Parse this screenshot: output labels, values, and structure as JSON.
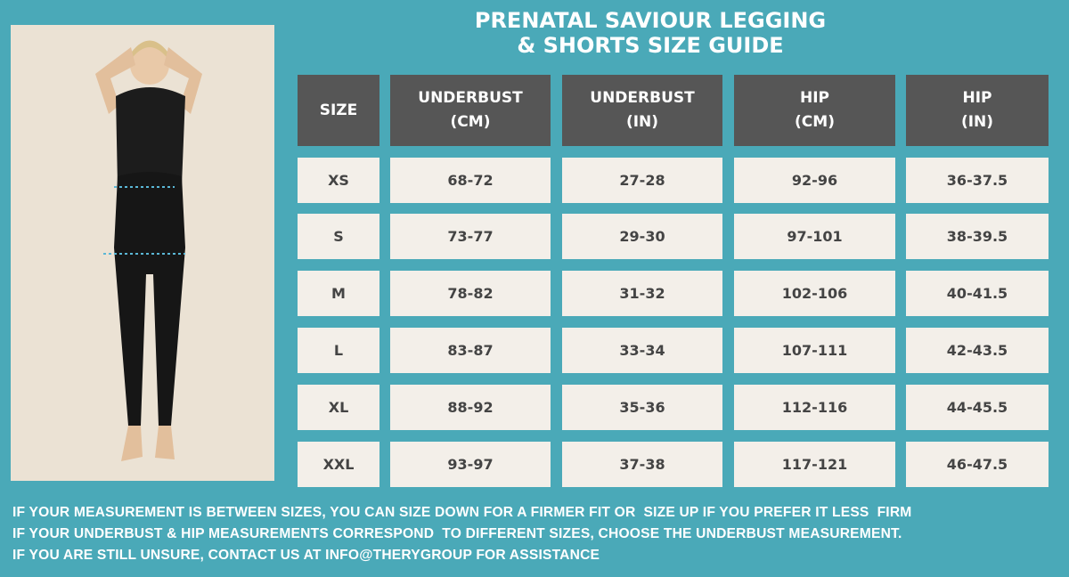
{
  "header": {
    "title": [
      "PRENATAL SAVIOUR LEGGING",
      "& SHORTS SIZE GUIDE"
    ]
  },
  "table": {
    "headers": [
      [
        "SIZE"
      ],
      [
        "UNDERBUST",
        "(CM)"
      ],
      [
        "UNDERBUST",
        "(IN)"
      ],
      [
        "HIP",
        "(CM)"
      ],
      [
        "HIP",
        "(IN)"
      ]
    ],
    "rows": [
      [
        "XS",
        "68-72",
        "27-28",
        "92-96",
        "36-37.5"
      ],
      [
        "S",
        "73-77",
        "29-30",
        "97-101",
        "38-39.5"
      ],
      [
        "M",
        "78-82",
        "31-32",
        "102-106",
        "40-41.5"
      ],
      [
        "L",
        "83-87",
        "33-34",
        "107-111",
        "42-43.5"
      ],
      [
        "XL",
        "88-92",
        "35-36",
        "112-116",
        "44-45.5"
      ],
      [
        "XXL",
        "93-97",
        "37-38",
        "117-121",
        "46-47.5"
      ]
    ]
  },
  "notes": [
    "IF YOUR MEASUREMENT IS BETWEEN SIZES, YOU CAN SIZE DOWN FOR A FIRMER FIT OR  SIZE UP IF YOU PREFER IT LESS  FIRM",
    "IF YOUR UNDERBUST & HIP MEASUREMENTS CORRESPOND  TO DIFFERENT SIZES, CHOOSE THE UNDERBUST MEASUREMENT.",
    "IF YOU ARE STILL UNSURE, CONTACT US AT INFO@THERYGROUP FOR ASSISTANCE"
  ]
}
